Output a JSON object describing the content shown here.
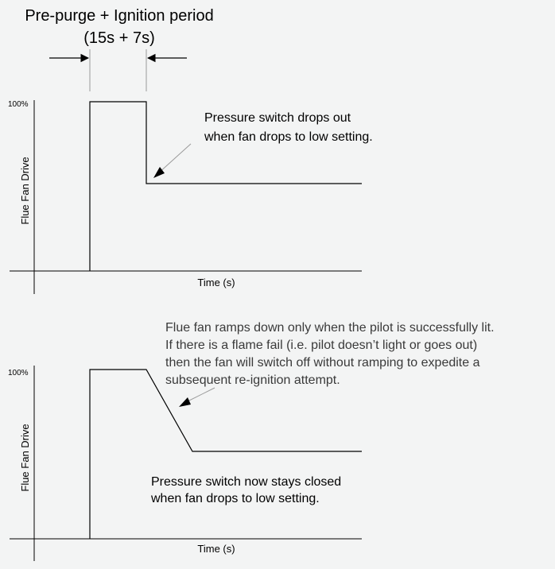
{
  "header": {
    "line1": "Pre-purge + Ignition period",
    "line2": "(15s + 7s)"
  },
  "top_chart": {
    "y_tick": "100%",
    "ylabel": "Flue Fan Drive",
    "xlabel": "Time (s)",
    "annotation": [
      "Pressure switch drops out",
      "when fan drops to low setting."
    ]
  },
  "bottom_chart": {
    "y_tick": "100%",
    "ylabel": "Flue Fan Drive",
    "xlabel": "Time (s)",
    "annotation_top": [
      "Flue fan ramps down only when the pilot is successfully lit.",
      "If there is a flame fail (i.e. pilot doesn’t light or goes out)",
      "then the fan will switch off without ramping to expedite a",
      "subsequent re-ignition attempt."
    ],
    "annotation_bottom": [
      "Pressure switch now stays closed",
      "when fan drops to low setting."
    ]
  },
  "colors": {
    "background": "#f3f4f4",
    "line": "#000000",
    "guide": "#9a9a9a"
  }
}
